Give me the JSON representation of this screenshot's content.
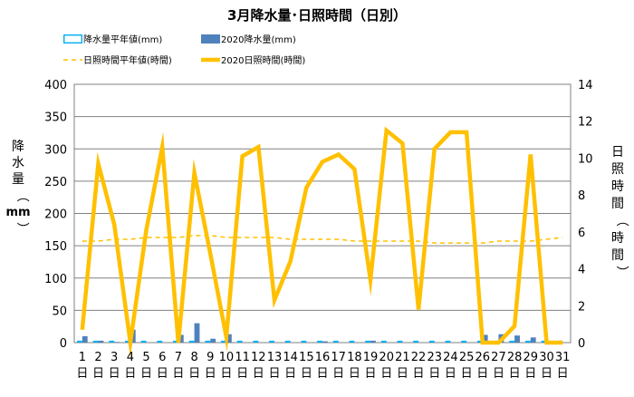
{
  "chart_data": {
    "type": "bar",
    "title": "3月降水量･日照時間（日別）",
    "ylabel_left": "降水量（mm）",
    "ylabel_right": "日照時間（時間）",
    "y_left_range": [
      0,
      400
    ],
    "y_left_ticks": [
      "0",
      "50",
      "100",
      "150",
      "200",
      "250",
      "300",
      "350",
      "400"
    ],
    "y_right_range": [
      0,
      14
    ],
    "y_right_ticks": [
      "0",
      "2",
      "4",
      "6",
      "8",
      "10",
      "12",
      "14"
    ],
    "categories": [
      "1",
      "2",
      "3",
      "4",
      "5",
      "6",
      "7",
      "8",
      "9",
      "10",
      "11",
      "12",
      "13",
      "14",
      "15",
      "16",
      "17",
      "18",
      "19",
      "20",
      "21",
      "22",
      "23",
      "24",
      "25",
      "26",
      "27",
      "28",
      "29",
      "30",
      "31"
    ],
    "category_suffix": "日",
    "grid": true,
    "legend_position": "top",
    "series": [
      {
        "name": "降水量平年値(mm)",
        "kind": "bar",
        "axis": "left",
        "color": "#00b0f0",
        "values": [
          3,
          3,
          3,
          3,
          3,
          3,
          3,
          3,
          3,
          3,
          3,
          3,
          3,
          3,
          3,
          3,
          3,
          3,
          3,
          3,
          3,
          3,
          3,
          3,
          3,
          3,
          3,
          3,
          3,
          3,
          3
        ]
      },
      {
        "name": "2020降水量(mm)",
        "kind": "bar",
        "axis": "left",
        "color": "#4f81bd",
        "values": [
          10,
          3,
          1,
          20,
          0,
          0,
          12,
          30,
          6,
          13,
          0,
          0,
          0,
          0,
          0,
          2,
          0,
          0,
          3,
          0,
          0,
          0,
          0,
          0,
          0,
          12,
          13,
          11,
          8,
          0,
          0
        ]
      },
      {
        "name": "日照時間平年値(時間)",
        "kind": "line",
        "axis": "right",
        "color": "#ffc000",
        "dashed": true,
        "values": [
          5.5,
          5.5,
          5.6,
          5.6,
          5.7,
          5.7,
          5.7,
          5.8,
          5.8,
          5.7,
          5.7,
          5.7,
          5.7,
          5.6,
          5.6,
          5.6,
          5.6,
          5.5,
          5.5,
          5.5,
          5.5,
          5.5,
          5.4,
          5.4,
          5.4,
          5.4,
          5.5,
          5.5,
          5.5,
          5.6,
          5.7
        ]
      },
      {
        "name": "2020日照時間(時間)",
        "kind": "line",
        "axis": "right",
        "color": "#ffc000",
        "dashed": false,
        "values": [
          0.7,
          9.7,
          6.4,
          0.0,
          6.1,
          10.6,
          0.0,
          9.2,
          4.8,
          0.3,
          10.1,
          10.6,
          2.3,
          4.4,
          8.4,
          9.8,
          10.2,
          9.4,
          3.4,
          11.5,
          10.8,
          1.8,
          10.5,
          11.4,
          11.4,
          0.0,
          0.0,
          0.9,
          10.2,
          0.0,
          0.0
        ]
      }
    ]
  }
}
